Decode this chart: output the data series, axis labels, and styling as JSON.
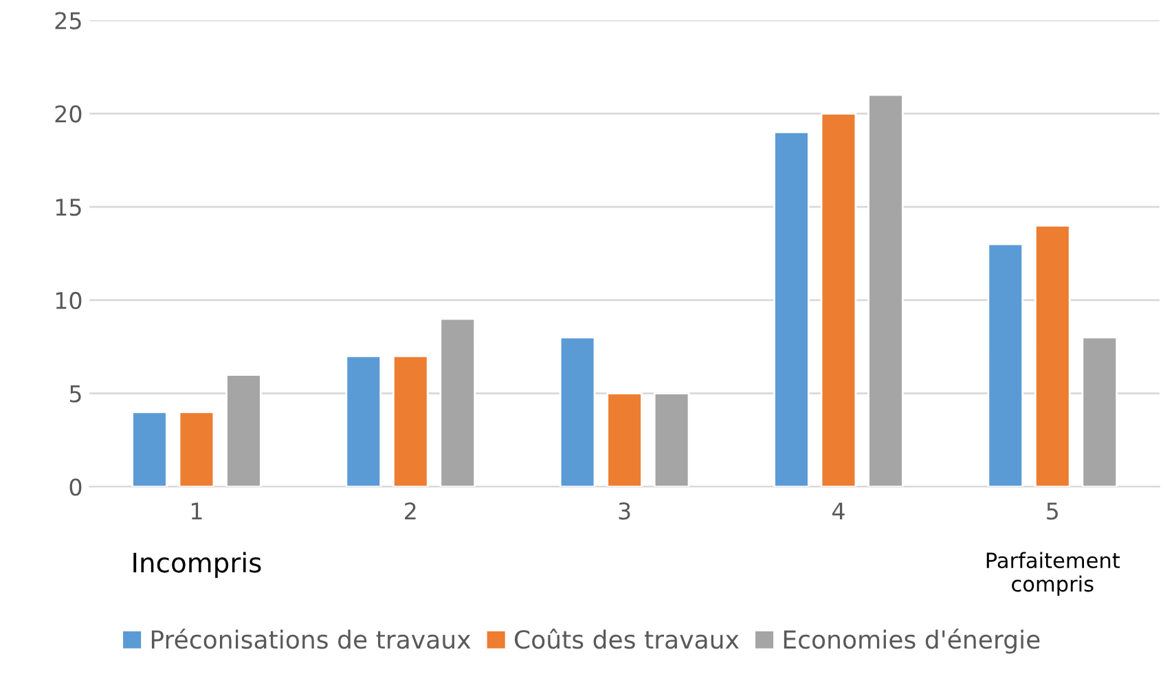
{
  "chart_data": {
    "type": "bar",
    "categories": [
      "1",
      "2",
      "3",
      "4",
      "5"
    ],
    "series": [
      {
        "name": "Préconisations de travaux",
        "color": "#5b9bd5",
        "values": [
          4,
          7,
          8,
          19,
          13
        ]
      },
      {
        "name": "Coûts des travaux",
        "color": "#ed7d31",
        "values": [
          4,
          7,
          5,
          20,
          14
        ]
      },
      {
        "name": "Economies d'énergie",
        "color": "#a5a5a5",
        "values": [
          6,
          9,
          5,
          21,
          8
        ]
      }
    ],
    "ylim": [
      0,
      25
    ],
    "yticks": [
      0,
      5,
      10,
      15,
      20,
      25
    ],
    "grid": "y",
    "legend": "bottom",
    "annotations": [
      "Incompris",
      "Parfaitement\ncompris"
    ]
  }
}
